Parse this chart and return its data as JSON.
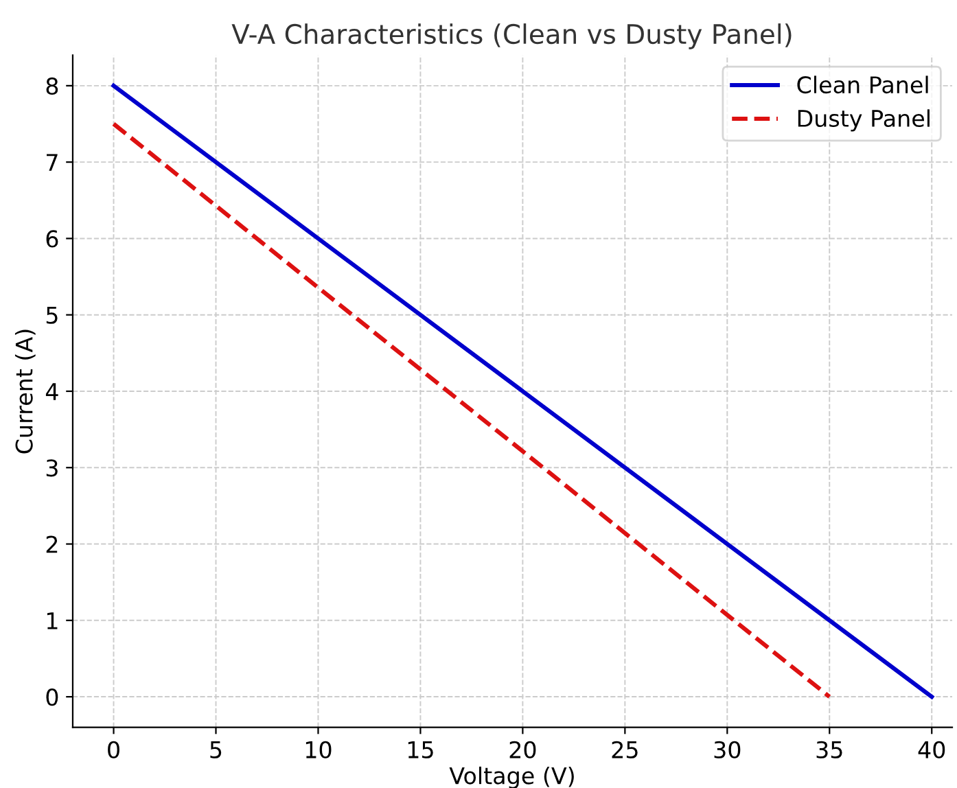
{
  "chart_data": {
    "type": "line",
    "title": "V-A Characteristics (Clean vs Dusty Panel)",
    "xlabel": "Voltage (V)",
    "ylabel": "Current (A)",
    "series": [
      {
        "name": "Clean Panel",
        "color": "#0000cc",
        "x": [
          0,
          40
        ],
        "values": [
          8,
          0
        ],
        "line_style": "solid"
      },
      {
        "name": "Dusty Panel",
        "color": "#dd1111",
        "x": [
          0,
          35
        ],
        "values": [
          7.5,
          0
        ],
        "line_style": "dashed"
      }
    ],
    "xlim": [
      -2,
      41
    ],
    "xticks": [
      0,
      5,
      10,
      15,
      20,
      25,
      30,
      35,
      40
    ],
    "ylim": [
      -0.4,
      8.4
    ],
    "yticks": [
      0,
      1,
      2,
      3,
      4,
      5,
      6,
      7,
      8
    ],
    "grid": true,
    "legend": "top right"
  }
}
